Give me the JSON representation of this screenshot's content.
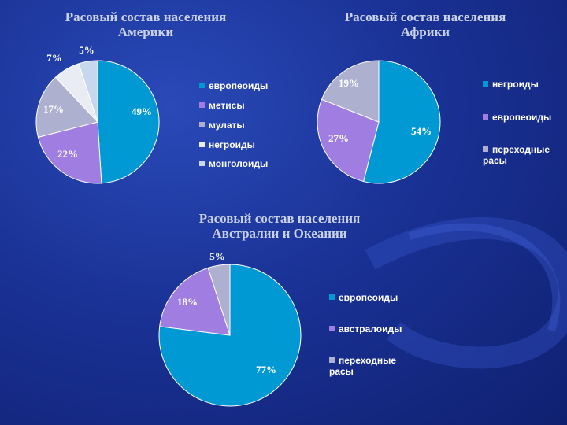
{
  "chart_data": [
    {
      "type": "pie",
      "title": "Расовый состав населения\nАмерики",
      "categories": [
        "европеоиды",
        "метисы",
        "мулаты",
        "негроиды",
        "монголоиды"
      ],
      "values": [
        49,
        22,
        17,
        7,
        5
      ],
      "labels": [
        "49%",
        "22%",
        "17%",
        "7%",
        "5%"
      ],
      "colors": [
        "#0099d4",
        "#a07de0",
        "#aeb0cf",
        "#e9ecf2",
        "#c7d8ee"
      ],
      "legend": "right"
    },
    {
      "type": "pie",
      "title": "Расовый состав населения\nАфрики",
      "categories": [
        "негроиды",
        "европеоиды",
        "переходные\nрасы"
      ],
      "values": [
        54,
        27,
        19
      ],
      "labels": [
        "54%",
        "27%",
        "19%"
      ],
      "colors": [
        "#0099d4",
        "#a07de0",
        "#aeb0cf"
      ],
      "legend": "right"
    },
    {
      "type": "pie",
      "title": "Расовый состав населения\nАвстралии и Океании",
      "categories": [
        "европеоиды",
        "австралоиды",
        "переходные\nрасы"
      ],
      "values": [
        77,
        18,
        5
      ],
      "labels": [
        "77%",
        "18%",
        "5%"
      ],
      "colors": [
        "#0099d4",
        "#a07de0",
        "#aeb0cf"
      ],
      "legend": "right"
    }
  ]
}
